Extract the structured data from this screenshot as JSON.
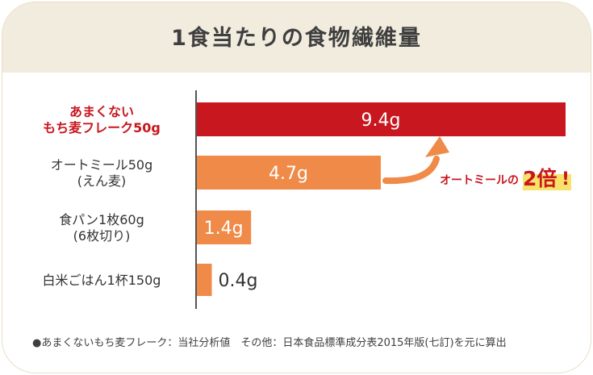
{
  "title": "1食当たりの食物繊維量",
  "chart_data": {
    "type": "bar",
    "orientation": "horizontal",
    "categories": [
      [
        "あまくない",
        "もち麦フレーク50g"
      ],
      [
        "オートミール50g",
        "(えん麦)"
      ],
      [
        "食パン1枚60g",
        "(6枚切り)"
      ],
      [
        "白米ごはん1杯150g"
      ]
    ],
    "values": [
      9.4,
      4.7,
      1.4,
      0.4
    ],
    "value_labels": [
      "9.4g",
      "4.7g",
      "1.4g",
      "0.4g"
    ],
    "unit": "g",
    "xlim": [
      0,
      9.4
    ],
    "highlight_index": 0,
    "colors": {
      "highlight": "#c8171f",
      "default": "#ef8a48",
      "axis": "#555555"
    },
    "annotation": {
      "prefix": "オートミールの",
      "emphasis": "2倍",
      "suffix": "!"
    }
  },
  "footnote": "●あまくないもち麦フレーク：当社分析値　その他：日本食品標準成分表2015年版(七訂)を元に算出"
}
